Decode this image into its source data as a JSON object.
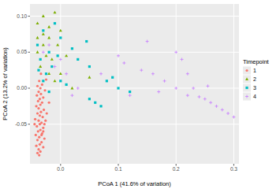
{
  "chart_data": {
    "type": "scatter",
    "xlabel": "PCoA 1 (41.6% of variation)",
    "ylabel": "PCoA 2 (13.2% of variation)",
    "legend_title": "Timepoint",
    "legend": "right",
    "grid": true,
    "xlim": [
      -0.053,
      0.309
    ],
    "ylim": [
      -0.105,
      0.117
    ],
    "xticks": [
      {
        "value": 0,
        "label": "0.0"
      },
      0.1,
      0.2,
      0.3
    ],
    "yticks": [
      -0.05,
      {
        "value": 0,
        "label": "0.00"
      },
      0.05,
      {
        "value": 0.1,
        "label": "0.10"
      }
    ],
    "series": [
      {
        "name": "1",
        "color": "#F8766D",
        "marker": "circle",
        "x": [
          -0.04,
          -0.035,
          -0.038,
          -0.03,
          -0.042,
          -0.036,
          -0.033,
          -0.04,
          -0.028,
          -0.037,
          -0.043,
          -0.032,
          -0.039,
          -0.035,
          -0.03,
          -0.041,
          -0.036,
          -0.033,
          -0.038,
          -0.044,
          -0.031,
          -0.036,
          -0.04,
          -0.034,
          -0.029,
          -0.038,
          -0.042,
          -0.035,
          -0.032,
          -0.039,
          -0.036,
          -0.03,
          -0.041,
          -0.034,
          -0.038,
          -0.027,
          -0.035,
          -0.04,
          -0.032,
          -0.037,
          -0.025,
          -0.034,
          -0.03,
          -0.026,
          -0.024,
          -0.045,
          -0.02,
          -0.037,
          -0.033,
          -0.028
        ],
        "values": [
          -0.09,
          -0.088,
          -0.085,
          -0.082,
          -0.08,
          -0.078,
          -0.075,
          -0.072,
          -0.07,
          -0.068,
          -0.065,
          -0.063,
          -0.06,
          -0.058,
          -0.055,
          -0.053,
          -0.05,
          -0.048,
          -0.045,
          -0.043,
          -0.04,
          -0.038,
          -0.035,
          -0.033,
          -0.03,
          -0.028,
          -0.025,
          -0.023,
          -0.02,
          -0.018,
          -0.015,
          -0.013,
          -0.01,
          -0.008,
          -0.005,
          -0.003,
          0.0,
          0.003,
          0.005,
          0.01,
          0.012,
          0.02,
          -0.06,
          -0.045,
          -0.035,
          -0.05,
          -0.02,
          -0.093,
          -0.065,
          -0.05
        ]
      },
      {
        "name": "2",
        "color": "#7CAE00",
        "marker": "triangle",
        "x": [
          -0.04,
          -0.03,
          -0.01,
          0.0,
          -0.02,
          -0.03,
          -0.025,
          -0.015,
          -0.035,
          -0.02,
          -0.01,
          0.0,
          0.02,
          0.05,
          -0.04,
          -0.005,
          0.01,
          -0.03,
          -0.02,
          -0.04
        ],
        "values": [
          0.09,
          0.1,
          0.105,
          0.08,
          0.07,
          0.06,
          0.045,
          0.04,
          0.03,
          0.02,
          0.01,
          0.02,
          0.0,
          0.015,
          0.05,
          0.06,
          0.045,
          0.075,
          0.085,
          0.07
        ]
      },
      {
        "name": "3",
        "color": "#00BFC4",
        "marker": "square",
        "x": [
          0.06,
          0.07,
          0.05,
          0.08,
          0.1,
          0.12,
          0.05,
          0.03,
          0.02,
          0.0,
          -0.01,
          -0.03,
          -0.04,
          -0.035,
          -0.02,
          -0.015,
          -0.025,
          -0.03,
          0.0,
          0.01,
          -0.02,
          0.045,
          0.09,
          -0.005,
          -0.038
        ],
        "values": [
          -0.02,
          -0.025,
          -0.015,
          0.01,
          0.0,
          -0.005,
          0.03,
          0.04,
          0.055,
          0.07,
          0.09,
          0.08,
          0.06,
          0.04,
          0.05,
          0.03,
          0.02,
          0.01,
          0.01,
          0.005,
          -0.005,
          0.065,
          0.015,
          0.045,
          0.025
        ]
      },
      {
        "name": "4",
        "color": "#C77CFF",
        "marker": "plus",
        "x": [
          0.15,
          0.2,
          0.21,
          0.1,
          0.11,
          0.22,
          0.23,
          0.25,
          0.26,
          0.27,
          0.28,
          0.3,
          0.29,
          0.24,
          0.2,
          0.18,
          0.16,
          0.14,
          0.12,
          0.07,
          0.03,
          0.02,
          0.17,
          0.255,
          0.22,
          -0.03,
          -0.02,
          -0.01,
          0.0,
          0.01
        ],
        "values": [
          0.065,
          0.05,
          0.04,
          0.045,
          0.035,
          -0.01,
          0.0,
          -0.015,
          -0.02,
          -0.025,
          -0.03,
          -0.04,
          -0.035,
          -0.012,
          0.0,
          0.01,
          0.02,
          0.025,
          -0.01,
          0.02,
          0.0,
          -0.01,
          -0.005,
          0.003,
          0.02,
          0.05,
          0.06,
          0.03,
          0.04,
          0.02
        ]
      }
    ]
  }
}
